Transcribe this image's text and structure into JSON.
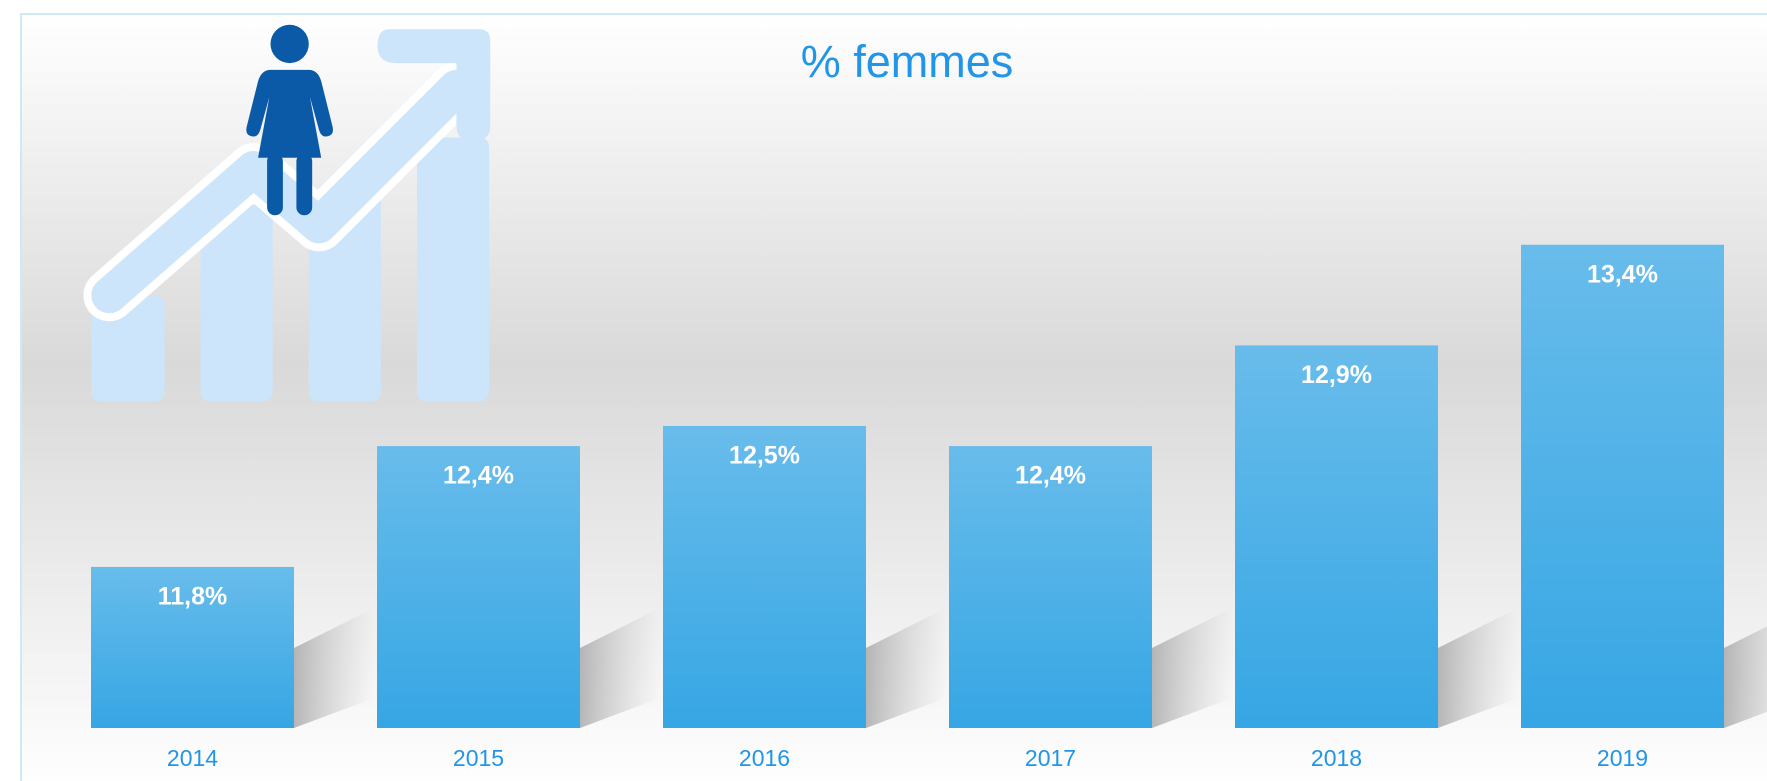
{
  "chart_data": {
    "type": "bar",
    "title": "% femmes",
    "categories": [
      "2014",
      "2015",
      "2016",
      "2017",
      "2018",
      "2019"
    ],
    "values": [
      11.8,
      12.4,
      12.5,
      12.4,
      12.9,
      13.4
    ],
    "value_labels": [
      "11,8%",
      "12,4%",
      "12,5%",
      "12,4%",
      "12,9%",
      "13,4%"
    ],
    "color": "#36a6e4",
    "ylim": [
      11,
      14
    ]
  }
}
